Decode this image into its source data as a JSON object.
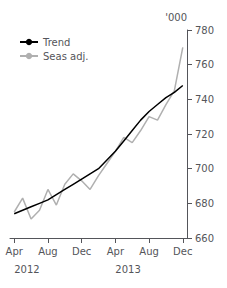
{
  "chart_data": {
    "type": "line",
    "y_label": "'000",
    "categories": [
      "Apr",
      null,
      null,
      null,
      "Aug",
      null,
      null,
      null,
      "Dec",
      null,
      null,
      null,
      "Apr",
      null,
      null,
      null,
      "Aug",
      null,
      null,
      null,
      "Dec"
    ],
    "series": [
      {
        "name": "Trend",
        "color": "#000000",
        "values": [
          674,
          676,
          678,
          680,
          682,
          685,
          688,
          691,
          694,
          697,
          700,
          705,
          710,
          716,
          722,
          728,
          733,
          737,
          741,
          744,
          748
        ]
      },
      {
        "name": "Seas adj.",
        "color": "#b0b0b0",
        "values": [
          675,
          683,
          671,
          676,
          688,
          679,
          691,
          697,
          693,
          688,
          696,
          703,
          710,
          718,
          715,
          722,
          730,
          728,
          737,
          745,
          770
        ]
      }
    ],
    "annotations": [
      {
        "text": "2012",
        "x": 0
      },
      {
        "text": "2013",
        "x": 12
      }
    ],
    "ylim": [
      660,
      780
    ],
    "yticks": [
      660,
      680,
      700,
      720,
      740,
      760,
      780
    ],
    "grid": false,
    "legend": "upper left"
  }
}
